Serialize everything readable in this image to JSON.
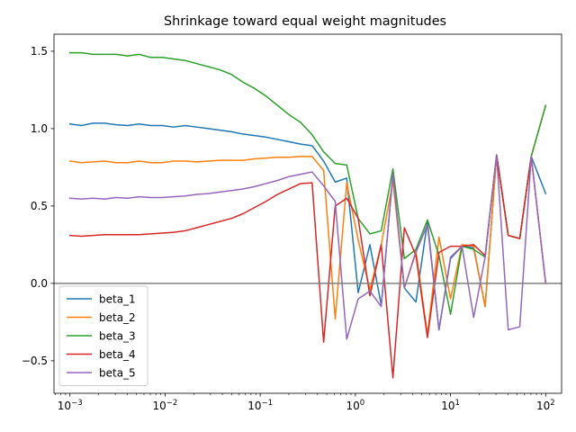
{
  "chart_data": {
    "type": "line",
    "title": "Shrinkage toward equal weight magnitudes",
    "xlabel": "",
    "ylabel": "",
    "xscale": "log",
    "xlim": [
      0.00068,
      147
    ],
    "ylim": [
      -0.71,
      1.61
    ],
    "grid": false,
    "legend_position": "lower-left",
    "reference_line": {
      "y": 0,
      "color": "#808080"
    },
    "x_ticks": [
      {
        "value": 0.001,
        "base": "10",
        "exp": "−3"
      },
      {
        "value": 0.01,
        "base": "10",
        "exp": "−2"
      },
      {
        "value": 0.1,
        "base": "10",
        "exp": "−1"
      },
      {
        "value": 1,
        "base": "10",
        "exp": "0"
      },
      {
        "value": 10,
        "base": "10",
        "exp": "1"
      },
      {
        "value": 100,
        "base": "10",
        "exp": "2"
      }
    ],
    "y_ticks": [
      {
        "value": -0.5,
        "label": "−0.5"
      },
      {
        "value": 0.0,
        "label": "0.0"
      },
      {
        "value": 0.5,
        "label": "0.5"
      },
      {
        "value": 1.0,
        "label": "1.0"
      },
      {
        "value": 1.5,
        "label": "1.5"
      }
    ],
    "x": [
      0.001,
      0.00132,
      0.00175,
      0.00231,
      0.00305,
      0.00404,
      0.00534,
      0.00705,
      0.00933,
      0.0123,
      0.0163,
      0.0215,
      0.0285,
      0.0376,
      0.0498,
      0.0658,
      0.087,
      0.115,
      0.152,
      0.201,
      0.266,
      0.351,
      0.464,
      0.614,
      0.811,
      1.07,
      1.42,
      1.87,
      2.48,
      3.27,
      4.33,
      5.72,
      7.56,
      10.0,
      13.2,
      17.5,
      23.1,
      30.5,
      40.4,
      53.4,
      70.5,
      100
    ],
    "series": [
      {
        "name": "beta_1",
        "color": "#1f77b4",
        "values": [
          1.03,
          1.02,
          1.035,
          1.035,
          1.025,
          1.02,
          1.03,
          1.02,
          1.02,
          1.01,
          1.02,
          1.01,
          1.0,
          0.99,
          0.98,
          0.965,
          0.955,
          0.945,
          0.93,
          0.915,
          0.9,
          0.89,
          0.79,
          0.655,
          0.68,
          -0.06,
          0.25,
          -0.14,
          0.7,
          -0.03,
          -0.12,
          0.4,
          -0.3,
          0.16,
          0.24,
          0.23,
          -0.15,
          0.83,
          0.31,
          0.29,
          0.82,
          0.58
        ]
      },
      {
        "name": "beta_2",
        "color": "#ff7f0e",
        "values": [
          0.79,
          0.78,
          0.785,
          0.79,
          0.78,
          0.78,
          0.79,
          0.78,
          0.78,
          0.79,
          0.79,
          0.785,
          0.79,
          0.795,
          0.795,
          0.795,
          0.805,
          0.81,
          0.815,
          0.815,
          0.82,
          0.82,
          0.73,
          -0.23,
          0.65,
          0.28,
          -0.04,
          0.25,
          0.66,
          -0.03,
          0.21,
          -0.33,
          0.3,
          -0.1,
          0.25,
          0.24,
          -0.15,
          0.83,
          0.31,
          0.29,
          0.82,
          1.15
        ]
      },
      {
        "name": "beta_3",
        "color": "#2ca02c",
        "values": [
          1.49,
          1.49,
          1.48,
          1.48,
          1.48,
          1.47,
          1.48,
          1.46,
          1.46,
          1.45,
          1.44,
          1.42,
          1.4,
          1.38,
          1.35,
          1.3,
          1.26,
          1.21,
          1.15,
          1.09,
          1.04,
          0.96,
          0.85,
          0.775,
          0.765,
          0.42,
          0.32,
          0.34,
          0.74,
          0.16,
          0.22,
          0.41,
          0.18,
          -0.2,
          0.24,
          0.22,
          0.17,
          0.83,
          0.31,
          0.29,
          0.82,
          1.15
        ]
      },
      {
        "name": "beta_4",
        "color": "#d62728",
        "values": [
          0.31,
          0.305,
          0.31,
          0.315,
          0.315,
          0.315,
          0.315,
          0.32,
          0.325,
          0.33,
          0.34,
          0.36,
          0.38,
          0.4,
          0.42,
          0.45,
          0.49,
          0.53,
          0.575,
          0.61,
          0.645,
          0.65,
          -0.38,
          0.5,
          0.55,
          0.42,
          -0.08,
          0.25,
          -0.61,
          0.36,
          0.18,
          -0.35,
          0.2,
          0.24,
          0.24,
          0.25,
          0.18,
          0.83,
          0.31,
          0.29,
          0.82,
          0.0
        ]
      },
      {
        "name": "beta_5",
        "color": "#9467bd",
        "values": [
          0.55,
          0.545,
          0.55,
          0.545,
          0.555,
          0.55,
          0.56,
          0.555,
          0.555,
          0.56,
          0.565,
          0.575,
          0.58,
          0.59,
          0.6,
          0.61,
          0.625,
          0.645,
          0.665,
          0.69,
          0.705,
          0.72,
          0.63,
          0.53,
          -0.36,
          -0.1,
          -0.05,
          -0.15,
          0.71,
          -0.03,
          0.2,
          0.38,
          -0.3,
          0.17,
          0.24,
          -0.22,
          0.17,
          0.83,
          -0.3,
          -0.28,
          0.82,
          0.0
        ]
      }
    ]
  }
}
